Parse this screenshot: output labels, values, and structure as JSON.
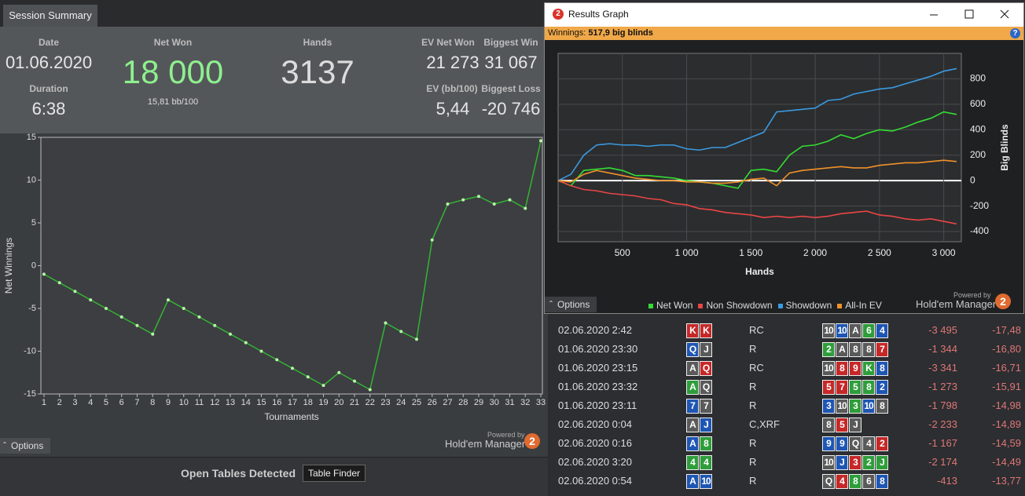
{
  "summary": {
    "tab": "Session Summary",
    "date_label": "Date",
    "date": "01.06.2020",
    "duration_label": "Duration",
    "duration": "6:38",
    "net_won_label": "Net Won",
    "net_won": "18 000",
    "bb_per_100": "15,81 bb/100",
    "hands_label": "Hands",
    "hands": "3137",
    "ev_net_won_label": "EV Net Won",
    "ev_net_won": "21 273",
    "biggest_win_label": "Biggest Win",
    "biggest_win": "31 067",
    "ev_bb_label": "EV (bb/100)",
    "ev_bb": "5,44",
    "biggest_loss_label": "Biggest Loss",
    "biggest_loss": "-20 746",
    "options": "Options",
    "powered_by": "Powered by",
    "brand": "Hold'em Manager",
    "logo": "2"
  },
  "open_tables": {
    "title": "Open Tables Detected",
    "button": "Table Finder"
  },
  "results_window": {
    "title": "Results Graph",
    "logo": "2",
    "winnings_label": "Winnings:",
    "winnings": "517,9 big blinds",
    "help": "?",
    "options": "Options",
    "powered_by": "Powered by",
    "brand": "Hold'em Manager"
  },
  "chart_data": [
    {
      "type": "line",
      "x_label": "Tournaments",
      "y_label": "Net Winnings",
      "color": "#35b335",
      "marker_color": "#b8f5a8",
      "x": [
        1,
        2,
        3,
        4,
        5,
        6,
        7,
        8,
        9,
        10,
        11,
        12,
        13,
        14,
        15,
        16,
        17,
        18,
        19,
        20,
        21,
        22,
        23,
        24,
        25,
        26,
        27,
        28,
        29,
        30,
        31,
        32,
        33
      ],
      "values": [
        -1,
        -2,
        -3,
        -4,
        -5,
        -6,
        -7,
        -8,
        -4,
        -5,
        -6,
        -7,
        -8,
        -9,
        -10,
        -11,
        -12,
        -13,
        -14,
        -12.5,
        -13.5,
        -14.5,
        -6.7,
        -7.7,
        -8.6,
        3,
        7.2,
        7.7,
        8.1,
        7.2,
        7.7,
        6.7,
        14.6
      ],
      "xlim": [
        0.8,
        33.1
      ],
      "xticks": [
        1,
        2,
        3,
        4,
        5,
        6,
        7,
        8,
        9,
        10,
        11,
        12,
        13,
        14,
        15,
        16,
        17,
        18,
        19,
        20,
        21,
        22,
        23,
        24,
        25,
        26,
        27,
        28,
        29,
        30,
        31,
        32,
        33
      ],
      "ylim": [
        -15,
        15
      ],
      "yticks": [
        15,
        10,
        5,
        0,
        -5,
        -10,
        -15
      ],
      "grid": false
    },
    {
      "type": "line",
      "x_label": "Hands",
      "y_label": "Big Blinds",
      "grid": true,
      "x": [
        0,
        100,
        200,
        300,
        400,
        500,
        600,
        700,
        800,
        900,
        1000,
        1100,
        1200,
        1300,
        1400,
        1500,
        1600,
        1700,
        1800,
        1900,
        2000,
        2100,
        2200,
        2300,
        2400,
        2500,
        2600,
        2700,
        2800,
        2900,
        3000,
        3100
      ],
      "series": [
        {
          "name": "Net Won",
          "color": "#33dd33",
          "values": [
            0,
            -40,
            80,
            90,
            100,
            80,
            40,
            40,
            30,
            20,
            0,
            -10,
            -20,
            -40,
            -60,
            80,
            90,
            70,
            200,
            270,
            280,
            310,
            360,
            330,
            370,
            400,
            390,
            420,
            460,
            490,
            540,
            520
          ]
        },
        {
          "name": "Non Showdown",
          "color": "#e84545",
          "values": [
            0,
            -40,
            -70,
            -80,
            -100,
            -110,
            -120,
            -140,
            -150,
            -180,
            -190,
            -220,
            -230,
            -250,
            -260,
            -270,
            -290,
            -280,
            -290,
            -280,
            -290,
            -280,
            -260,
            -250,
            -240,
            -270,
            -280,
            -300,
            -310,
            -300,
            -320,
            -340
          ]
        },
        {
          "name": "Showdown",
          "color": "#3a9ae0",
          "values": [
            0,
            50,
            200,
            280,
            290,
            280,
            280,
            270,
            280,
            280,
            250,
            240,
            260,
            260,
            300,
            340,
            380,
            540,
            550,
            560,
            570,
            630,
            640,
            680,
            700,
            720,
            730,
            760,
            790,
            820,
            860,
            880
          ]
        },
        {
          "name": "All-In EV",
          "color": "#f0922a",
          "values": [
            0,
            -10,
            50,
            80,
            60,
            40,
            20,
            10,
            0,
            0,
            -10,
            -10,
            -20,
            -20,
            -10,
            10,
            20,
            -40,
            60,
            80,
            90,
            100,
            110,
            100,
            100,
            120,
            130,
            140,
            140,
            150,
            160,
            150
          ]
        }
      ],
      "xlim": [
        0,
        3137
      ],
      "xticks": [
        500,
        {
          "value": 1000,
          "label": "1 000"
        },
        {
          "value": 1500,
          "label": "1 500"
        },
        {
          "value": 2000,
          "label": "2 000"
        },
        {
          "value": 2500,
          "label": "2 500"
        },
        {
          "value": 3000,
          "label": "3 000"
        }
      ],
      "ylim": [
        -480,
        1000
      ],
      "yticks": [
        800,
        600,
        400,
        200,
        0,
        -200,
        -400
      ]
    }
  ],
  "hands_table": {
    "rows": [
      {
        "date": "02.06.2020 2:42",
        "hole": [
          {
            "rank": "K",
            "color": "#c62828"
          },
          {
            "rank": "K",
            "color": "#c62828"
          }
        ],
        "action": "RC",
        "board": [
          {
            "rank": "10",
            "color": "#5a5a5a"
          },
          {
            "rank": "10",
            "color": "#1e56b4"
          },
          {
            "rank": "A",
            "color": "#5a5a5a"
          },
          {
            "rank": "6",
            "color": "#2e9e3a"
          },
          {
            "rank": "4",
            "color": "#1e56b4"
          }
        ],
        "amount": "-3 495",
        "bb": "-17,48"
      },
      {
        "date": "01.06.2020 23:30",
        "hole": [
          {
            "rank": "Q",
            "color": "#1e56b4"
          },
          {
            "rank": "J",
            "color": "#5a5a5a"
          }
        ],
        "action": "R",
        "board": [
          {
            "rank": "2",
            "color": "#2e9e3a"
          },
          {
            "rank": "A",
            "color": "#5a5a5a"
          },
          {
            "rank": "8",
            "color": "#5a5a5a"
          },
          {
            "rank": "8",
            "color": "#5a5a5a"
          },
          {
            "rank": "7",
            "color": "#c62828"
          }
        ],
        "amount": "-1 344",
        "bb": "-16,80"
      },
      {
        "date": "01.06.2020 23:15",
        "hole": [
          {
            "rank": "A",
            "color": "#5a5a5a"
          },
          {
            "rank": "Q",
            "color": "#c62828"
          }
        ],
        "action": "RC",
        "board": [
          {
            "rank": "10",
            "color": "#5a5a5a"
          },
          {
            "rank": "8",
            "color": "#c62828"
          },
          {
            "rank": "9",
            "color": "#c62828"
          },
          {
            "rank": "K",
            "color": "#2e9e3a"
          },
          {
            "rank": "8",
            "color": "#1e56b4"
          }
        ],
        "amount": "-3 341",
        "bb": "-16,71"
      },
      {
        "date": "01.06.2020 23:32",
        "hole": [
          {
            "rank": "A",
            "color": "#2e9e3a"
          },
          {
            "rank": "Q",
            "color": "#5a5a5a"
          }
        ],
        "action": "R",
        "board": [
          {
            "rank": "5",
            "color": "#c62828"
          },
          {
            "rank": "7",
            "color": "#c62828"
          },
          {
            "rank": "5",
            "color": "#2e9e3a"
          },
          {
            "rank": "8",
            "color": "#2e9e3a"
          },
          {
            "rank": "2",
            "color": "#1e56b4"
          }
        ],
        "amount": "-1 273",
        "bb": "-15,91"
      },
      {
        "date": "01.06.2020 23:11",
        "hole": [
          {
            "rank": "7",
            "color": "#1e56b4"
          },
          {
            "rank": "7",
            "color": "#5a5a5a"
          }
        ],
        "action": "R",
        "board": [
          {
            "rank": "3",
            "color": "#1e56b4"
          },
          {
            "rank": "10",
            "color": "#5a5a5a"
          },
          {
            "rank": "3",
            "color": "#2e9e3a"
          },
          {
            "rank": "10",
            "color": "#1e56b4"
          },
          {
            "rank": "8",
            "color": "#5a5a5a"
          }
        ],
        "amount": "-1 798",
        "bb": "-14,98"
      },
      {
        "date": "02.06.2020 0:04",
        "hole": [
          {
            "rank": "A",
            "color": "#5a5a5a"
          },
          {
            "rank": "J",
            "color": "#1e56b4"
          }
        ],
        "action": "C,XRF",
        "board": [
          {
            "rank": "8",
            "color": "#5a5a5a"
          },
          {
            "rank": "5",
            "color": "#c62828"
          },
          {
            "rank": "J",
            "color": "#5a5a5a"
          }
        ],
        "amount": "-2 233",
        "bb": "-14,89"
      },
      {
        "date": "02.06.2020 0:16",
        "hole": [
          {
            "rank": "A",
            "color": "#1e56b4"
          },
          {
            "rank": "8",
            "color": "#2e9e3a"
          }
        ],
        "action": "R",
        "board": [
          {
            "rank": "9",
            "color": "#1e56b4"
          },
          {
            "rank": "9",
            "color": "#1e56b4"
          },
          {
            "rank": "Q",
            "color": "#5a5a5a"
          },
          {
            "rank": "4",
            "color": "#5a5a5a"
          },
          {
            "rank": "2",
            "color": "#c62828"
          }
        ],
        "amount": "-1 167",
        "bb": "-14,59"
      },
      {
        "date": "02.06.2020 3:20",
        "hole": [
          {
            "rank": "4",
            "color": "#2e9e3a"
          },
          {
            "rank": "4",
            "color": "#2e9e3a"
          }
        ],
        "action": "R",
        "board": [
          {
            "rank": "10",
            "color": "#5a5a5a"
          },
          {
            "rank": "J",
            "color": "#1e56b4"
          },
          {
            "rank": "3",
            "color": "#c62828"
          },
          {
            "rank": "2",
            "color": "#2e9e3a"
          },
          {
            "rank": "J",
            "color": "#2e9e3a"
          }
        ],
        "amount": "-2 174",
        "bb": "-14,49"
      },
      {
        "date": "02.06.2020 0:54",
        "hole": [
          {
            "rank": "A",
            "color": "#1e56b4"
          },
          {
            "rank": "10",
            "color": "#1e56b4"
          }
        ],
        "action": "R",
        "board": [
          {
            "rank": "Q",
            "color": "#5a5a5a"
          },
          {
            "rank": "4",
            "color": "#c62828"
          },
          {
            "rank": "8",
            "color": "#2e9e3a"
          },
          {
            "rank": "6",
            "color": "#5a5a5a"
          },
          {
            "rank": "8",
            "color": "#1e56b4"
          }
        ],
        "amount": "-413",
        "bb": "-13,77"
      }
    ]
  }
}
